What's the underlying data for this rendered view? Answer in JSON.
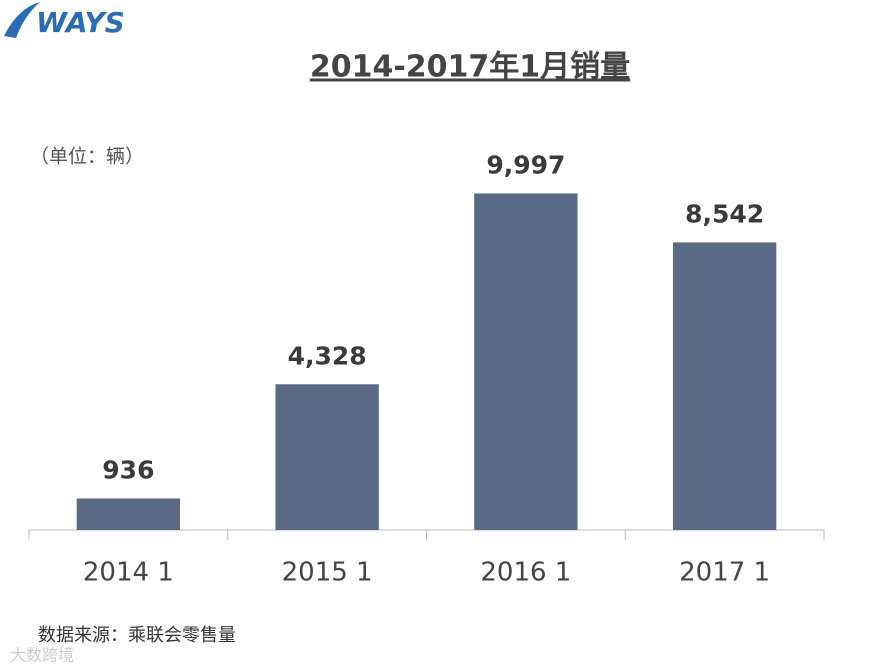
{
  "chart_data": {
    "type": "bar",
    "title": "2014-2017年1月销量",
    "unit_label": "（单位：辆）",
    "categories": [
      "2014 1",
      "2015 1",
      "2016 1",
      "2017 1"
    ],
    "values": [
      936,
      4328,
      9997,
      8542
    ],
    "value_labels": [
      "936",
      "4,328",
      "9,997",
      "8,542"
    ],
    "color": "#5a6a86",
    "ylim": [
      0,
      12000
    ],
    "source": "数据来源：乘联会零售量",
    "logo": "WAYS",
    "watermark": "大数跨境"
  }
}
